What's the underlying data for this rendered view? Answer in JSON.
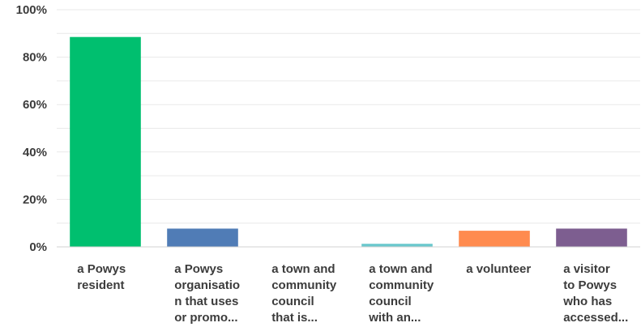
{
  "chart_data": {
    "type": "bar",
    "categories": [
      "a Powys\nresident",
      "a Powys\norganisatio\nn that uses\nor promo...",
      "a town and\ncommunity\ncouncil\nthat is...",
      "a town and\ncommunity\ncouncil\nwith an...",
      "a volunteer",
      "a visitor\nto Powys\nwho has\naccessed..."
    ],
    "values": [
      88.5,
      7.7,
      0,
      1.3,
      6.8,
      7.7
    ],
    "colors": [
      "#00bf6f",
      "#507cb6",
      "#507cb6",
      "#6bc8cd",
      "#ff8b4f",
      "#7d5e90"
    ],
    "yticks": [
      "0%",
      "20%",
      "40%",
      "60%",
      "80%",
      "100%"
    ],
    "ylim": [
      0,
      100
    ],
    "title": "",
    "xlabel": "",
    "ylabel": "",
    "grid": true
  }
}
